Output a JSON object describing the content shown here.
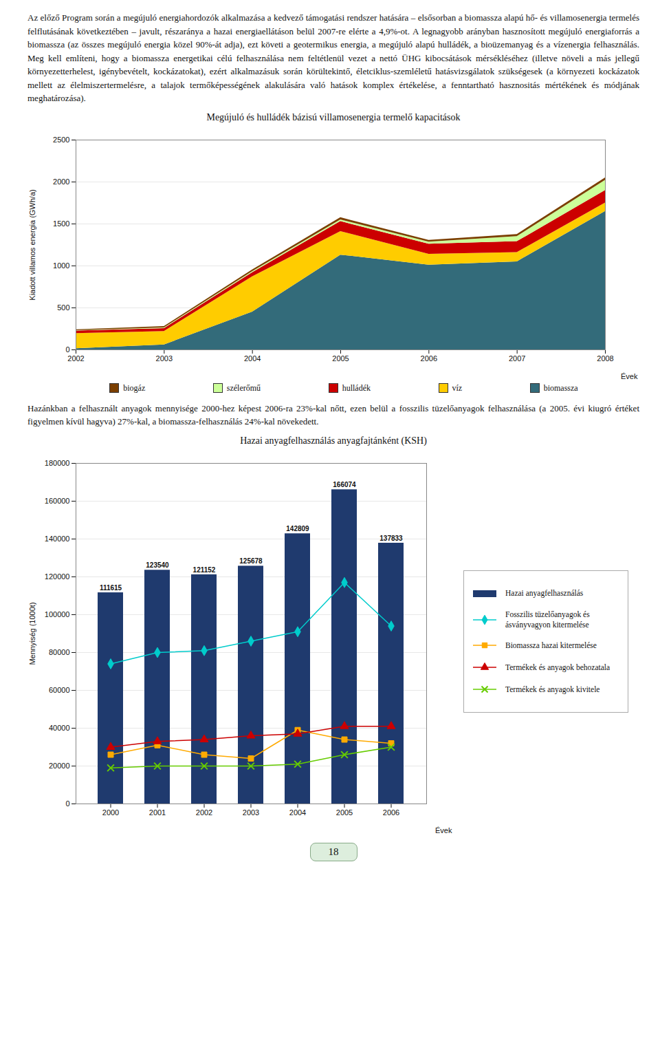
{
  "chart_data": [
    {
      "type": "area",
      "title": "Megújuló és hulládék bázisú villamosenergia termelő kapacitások",
      "annotations": [
        "Az előző Program során a megújuló energiahordozók alkalmazása a kedvező támogatási rendszer hatására – elsősorban a biomassza alapú hő- és villamosenergia termelés felflutásának következtében – javult, részaránya a hazai energiaellátáson belül 2007-re elérte a 4,9%-ot. A legnagyobb arányban hasznosított megújuló energiaforrás a biomassza (az összes megújuló energia közel 90%-át adja), ezt követi a geotermikus energia, a megújuló alapú hulládék, a bioüzemanyag és a vízenergia felhasználás. Meg kell említeni, hogy a biomassza energetikai célú felhasználása nem feltétlenül vezet a nettó ÜHG kibocsátások mérsékléséhez (illetve növeli a más jellegű környezetterhelest, igénybevételt, kockázatokat), ezért alkalmazásuk során körültekintő, életciklus-szemléletű hatásvizsgálatok szükségesek (a környezeti kockázatok mellett az élelmiszertermelésre, a talajok termőképességének alakulására való hatások komplex értékelése, a fenntartható hasznositás mértékének és módjának meghatározása)."
      ],
      "xlabel": "Évek",
      "ylabel": "Kiadott villamos energia (GWh/a)",
      "x": [
        2002,
        2003,
        2004,
        2005,
        2006,
        2007,
        2008
      ],
      "xlim": [
        2002,
        2008
      ],
      "xticks": [
        2002,
        2003,
        2004,
        2005,
        2006,
        2007,
        2008
      ],
      "ylim": [
        0,
        2500
      ],
      "yticks": [
        0,
        500,
        1000,
        1500,
        2000,
        2500
      ],
      "grid": true,
      "stacked": true,
      "legend": "bottom",
      "series": [
        {
          "name": "biomassza",
          "color": "#336b7a",
          "values": [
            15,
            60,
            450,
            1130,
            1010,
            1050,
            1650
          ]
        },
        {
          "name": "víz",
          "color": "#ffcc00",
          "values": [
            180,
            160,
            420,
            280,
            130,
            110,
            100
          ]
        },
        {
          "name": "hulládék",
          "color": "#cc0000",
          "values": [
            30,
            35,
            50,
            120,
            120,
            130,
            150
          ]
        },
        {
          "name": "szélerőmű",
          "color": "#ccff99",
          "values": [
            5,
            8,
            12,
            20,
            25,
            60,
            120
          ]
        },
        {
          "name": "biogáz",
          "color": "#7b3f00",
          "values": [
            10,
            15,
            20,
            25,
            20,
            25,
            30
          ]
        }
      ]
    },
    {
      "type": "bar",
      "title": "Hazai anyagfelhasználás anyagfajtánként (KSH)",
      "annotations": [
        "Hazánkban a felhasznált anyagok mennyisége 2000-hez képest 2006-ra 23%-kal nőtt, ezen belül a fosszilis tüzelőanyagok felhasználása (a 2005. évi kiugró értéket figyelmen kívül hagyva) 27%-kal, a biomassza-felhasználás 24%-kal növekedett.",
        "18"
      ],
      "xlabel": "Évek",
      "ylabel": "Mennyiség (1000t)",
      "categories": [
        2000,
        2001,
        2002,
        2003,
        2004,
        2005,
        2006
      ],
      "ylim": [
        0,
        180000
      ],
      "yticks": [
        0,
        20000,
        40000,
        60000,
        80000,
        100000,
        120000,
        140000,
        160000,
        180000
      ],
      "grid": true,
      "legend": "right",
      "series": [
        {
          "name": "Hazai anyagfelhasználás",
          "type": "bar",
          "color": "#1f3a6e",
          "data_labels": true,
          "values": [
            111615,
            123540,
            121152,
            125678,
            142809,
            166074,
            137833
          ]
        },
        {
          "name": "Fosszilis tüzelőanyagok és\násványvagyon kitermelése",
          "type": "line",
          "color": "#00cccc",
          "marker": "diamond",
          "values": [
            74000,
            80000,
            81000,
            86000,
            91000,
            117000,
            94000
          ]
        },
        {
          "name": "Biomassza hazai kitermelése",
          "type": "line",
          "color": "#ffaa00",
          "marker": "square",
          "values": [
            26000,
            31000,
            26000,
            24000,
            39000,
            34000,
            32000
          ]
        },
        {
          "name": "Termékek és anyagok behozatala",
          "type": "line",
          "color": "#cc0000",
          "marker": "triangle",
          "values": [
            30000,
            33000,
            34000,
            36000,
            37000,
            41000,
            41000
          ]
        },
        {
          "name": "Termékek és anyagok kivitele",
          "type": "line",
          "color": "#66cc00",
          "marker": "x",
          "values": [
            19000,
            20000,
            20000,
            20000,
            21000,
            26000,
            30000
          ]
        }
      ]
    }
  ]
}
